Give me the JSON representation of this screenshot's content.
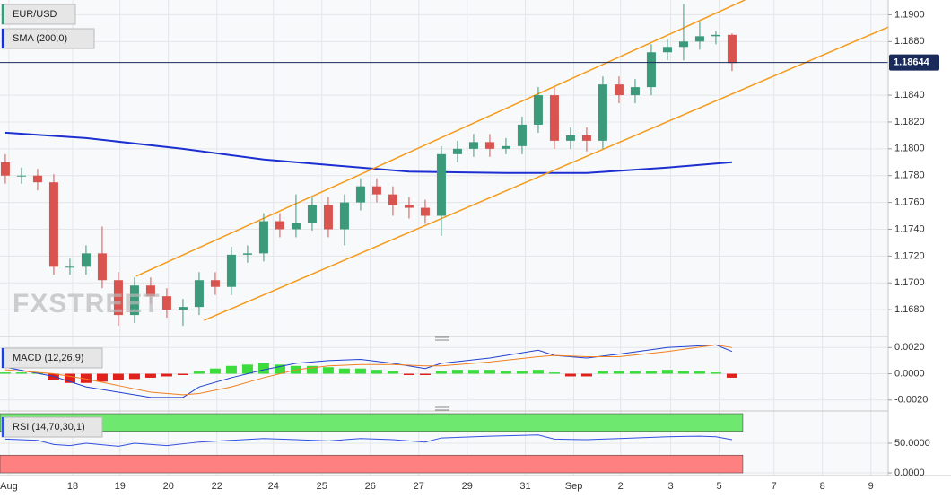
{
  "chart_data": [
    {
      "type": "candlestick",
      "title": "EUR/USD",
      "watermark": "FXSTREET",
      "up_color": "#3a9a79",
      "down_color": "#d9534f",
      "xlim": [
        -0.33,
        54.67
      ],
      "ylim": [
        1.1662,
        1.1911
      ],
      "xticks": [
        {
          "value": 0.22,
          "label": "Aug"
        },
        {
          "value": 4.17,
          "label": "18"
        },
        {
          "value": 7.1,
          "label": "19"
        },
        {
          "value": 10.1,
          "label": "20"
        },
        {
          "value": 13.1,
          "label": "22"
        },
        {
          "value": 16.6,
          "label": "24"
        },
        {
          "value": 19.6,
          "label": "25"
        },
        {
          "value": 22.6,
          "label": "26"
        },
        {
          "value": 25.6,
          "label": "27"
        },
        {
          "value": 28.6,
          "label": "29"
        },
        {
          "value": 32.2,
          "label": "31"
        },
        {
          "value": 35.2,
          "label": "Sep"
        },
        {
          "value": 38.1,
          "label": "2"
        },
        {
          "value": 41.2,
          "label": "3"
        },
        {
          "value": 44.2,
          "label": "5"
        },
        {
          "value": 47.6,
          "label": "7"
        },
        {
          "value": 50.6,
          "label": "8"
        },
        {
          "value": 53.6,
          "label": "9"
        }
      ],
      "yticks": [
        {
          "value": 1.168,
          "label": "1.1680"
        },
        {
          "value": 1.17,
          "label": "1.1700"
        },
        {
          "value": 1.172,
          "label": "1.1720"
        },
        {
          "value": 1.174,
          "label": "1.1740"
        },
        {
          "value": 1.176,
          "label": "1.1760"
        },
        {
          "value": 1.178,
          "label": "1.1780"
        },
        {
          "value": 1.18,
          "label": "1.1800"
        },
        {
          "value": 1.182,
          "label": "1.1820"
        },
        {
          "value": 1.184,
          "label": "1.1840"
        },
        {
          "value": 1.188,
          "label": "1.1880"
        },
        {
          "value": 1.19,
          "label": "1.1900"
        }
      ],
      "grid": true,
      "open": [
        1.179,
        1.178,
        1.178,
        1.1775,
        1.1712,
        1.1712,
        1.1722,
        1.1702,
        1.1676,
        1.1698,
        1.169,
        1.168,
        1.1682,
        1.1702,
        1.1697,
        1.1721,
        1.1722,
        1.1746,
        1.174,
        1.1745,
        1.1758,
        1.174,
        1.176,
        1.1772,
        1.1766,
        1.1758,
        1.1756,
        1.175,
        1.1796,
        1.18,
        1.1805,
        1.18,
        1.1802,
        1.1818,
        1.184,
        1.1806,
        1.181,
        1.1806,
        1.1848,
        1.184,
        1.1846,
        1.1872,
        1.1876,
        1.188,
        1.1884,
        1.1885
      ],
      "high": [
        1.1796,
        1.1786,
        1.1785,
        1.1781,
        1.1718,
        1.1728,
        1.1742,
        1.1708,
        1.1704,
        1.1704,
        1.1696,
        1.1688,
        1.1708,
        1.1708,
        1.1727,
        1.1728,
        1.1752,
        1.1752,
        1.1766,
        1.1764,
        1.1764,
        1.1766,
        1.1778,
        1.1778,
        1.1772,
        1.1764,
        1.1762,
        1.1802,
        1.1806,
        1.1811,
        1.1811,
        1.1808,
        1.1824,
        1.1846,
        1.1846,
        1.1816,
        1.1816,
        1.1854,
        1.1854,
        1.1852,
        1.1878,
        1.1882,
        1.1908,
        1.1895,
        1.1888,
        1.1886
      ],
      "low": [
        1.1774,
        1.1774,
        1.1769,
        1.1706,
        1.1706,
        1.1706,
        1.1696,
        1.1668,
        1.167,
        1.1684,
        1.1674,
        1.1668,
        1.1676,
        1.1691,
        1.1691,
        1.1715,
        1.1716,
        1.1734,
        1.1734,
        1.1739,
        1.1734,
        1.1728,
        1.1754,
        1.176,
        1.175,
        1.1748,
        1.1744,
        1.1735,
        1.179,
        1.1794,
        1.1794,
        1.1796,
        1.1796,
        1.1812,
        1.18,
        1.18,
        1.1798,
        1.18,
        1.1834,
        1.1834,
        1.184,
        1.1866,
        1.1866,
        1.1874,
        1.1878,
        1.1858
      ],
      "close": [
        1.178,
        1.178,
        1.1775,
        1.1712,
        1.1712,
        1.1722,
        1.1702,
        1.1676,
        1.1698,
        1.169,
        1.168,
        1.1682,
        1.1702,
        1.1697,
        1.1721,
        1.1722,
        1.1746,
        1.174,
        1.1745,
        1.1758,
        1.174,
        1.176,
        1.1772,
        1.1766,
        1.1758,
        1.1756,
        1.175,
        1.1796,
        1.18,
        1.1805,
        1.18,
        1.1802,
        1.1818,
        1.184,
        1.1806,
        1.181,
        1.1806,
        1.1848,
        1.184,
        1.1846,
        1.1872,
        1.1876,
        1.188,
        1.1884,
        1.1885,
        1.1864
      ],
      "sma": {
        "name": "SMA (200,0)",
        "color": "#1c2fd0",
        "x": [
          0,
          5,
          11,
          16,
          22,
          25,
          31,
          36,
          41,
          45
        ],
        "values": [
          1.1812,
          1.1808,
          1.18,
          1.1792,
          1.1786,
          1.1783,
          1.1782,
          1.1782,
          1.1786,
          1.179
        ]
      },
      "trendlines": [
        {
          "color": "#f59a1a",
          "x": [
            8.1,
            45.8
          ],
          "values": [
            1.1705,
            1.1911
          ]
        },
        {
          "color": "#f59a1a",
          "x": [
            12.3,
            54.7
          ],
          "values": [
            1.1672,
            1.1891
          ]
        }
      ],
      "last_price": {
        "value": 1.18644,
        "label": "1.18644",
        "color": "#1a2a5a"
      }
    },
    {
      "type": "bar",
      "title": "MACD (12,26,9)",
      "ylim": [
        -0.0027,
        0.0025
      ],
      "yticks": [
        {
          "value": 0.002,
          "label": "0.0020"
        },
        {
          "value": 0,
          "label": "0.0000"
        },
        {
          "value": -0.002,
          "label": "-0.0020"
        }
      ],
      "up_color": "#3cdc3c",
      "down_color": "#e0201a",
      "values": [
        0.0001,
        0.0001,
        0.0001,
        -0.0005,
        -0.0007,
        -0.0007,
        -0.0006,
        -0.0005,
        -0.0004,
        -0.0003,
        -0.0002,
        -0.0001,
        0.0002,
        0.0004,
        0.0006,
        0.0007,
        0.0008,
        0.0007,
        0.0006,
        0.0006,
        0.0005,
        0.0004,
        0.0004,
        0.0003,
        0.0002,
        -0.0001,
        -0.0001,
        0.0002,
        0.0003,
        0.0003,
        0.0003,
        0.0002,
        0.0002,
        0.0003,
        0.0001,
        -0.0002,
        -0.0002,
        0.0002,
        0.0002,
        0.0002,
        0.0002,
        0.0003,
        0.0002,
        0.0002,
        0.0001,
        -0.0003
      ],
      "lines": [
        {
          "color": "#2040d0",
          "x": [
            0,
            3,
            5,
            7,
            9,
            11,
            12,
            14,
            16,
            18,
            20,
            22,
            24,
            26,
            27,
            30,
            33,
            34,
            36,
            38,
            41,
            44,
            45
          ],
          "values": [
            0.0005,
            -0.0002,
            -0.001,
            -0.0014,
            -0.0018,
            -0.0018,
            -0.001,
            -0.0003,
            0.0003,
            0.0008,
            0.001,
            0.0011,
            0.0008,
            0.0004,
            0.0008,
            0.0012,
            0.0018,
            0.0014,
            0.0012,
            0.0015,
            0.002,
            0.0022,
            0.0017
          ]
        },
        {
          "color": "#f08020",
          "x": [
            0,
            3,
            5,
            7,
            9,
            11,
            12,
            14,
            16,
            18,
            20,
            22,
            24,
            26,
            27,
            30,
            33,
            34,
            36,
            38,
            41,
            44,
            45
          ],
          "values": [
            0.0003,
            0,
            -0.0004,
            -0.0009,
            -0.0014,
            -0.0016,
            -0.0015,
            -0.001,
            -0.0003,
            0.0003,
            0.0006,
            0.0007,
            0.0007,
            0.0006,
            0.0006,
            0.0009,
            0.0013,
            0.0014,
            0.0013,
            0.0013,
            0.0017,
            0.0022,
            0.002
          ]
        }
      ]
    },
    {
      "type": "line",
      "title": "RSI (14,70,30,1)",
      "ylim": [
        -4.5,
        101.5
      ],
      "yticks": [
        {
          "value": 50,
          "label": "50.0000"
        },
        {
          "value": 0,
          "label": "0.0000"
        }
      ],
      "bands": [
        {
          "range": [
            70,
            100
          ],
          "color": "#6ee86e"
        },
        {
          "range": [
            0,
            30
          ],
          "color": "#ff8080"
        }
      ],
      "color": "#3050e0",
      "x": [
        0,
        2,
        3,
        4,
        5,
        7,
        8,
        10,
        12,
        14,
        16,
        18,
        20,
        22,
        24,
        26,
        27,
        30,
        33,
        34,
        36,
        38,
        41,
        43,
        44,
        45
      ],
      "values": [
        57,
        55,
        48,
        46,
        50,
        45,
        50,
        46,
        52,
        55,
        58,
        56,
        54,
        58,
        56,
        52,
        59,
        62,
        64,
        57,
        56,
        58,
        61,
        62,
        61,
        56
      ]
    }
  ]
}
